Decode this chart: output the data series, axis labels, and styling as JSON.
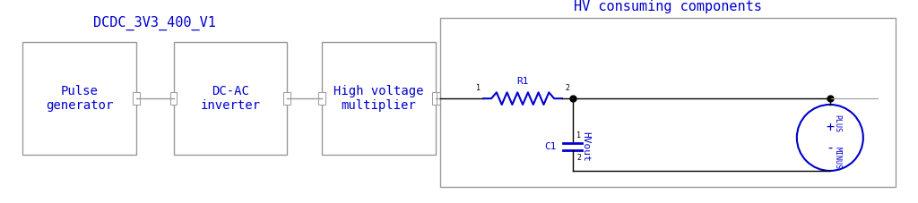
{
  "bg_color": "#ffffff",
  "blue": "#0000cd",
  "gray": "#999999",
  "title1": "DCDC_3V3_400_V1",
  "title2": "HV consuming components",
  "box1_label": "Pulse\ngenerator",
  "box2_label": "DC-AC\ninverter",
  "box3_label": "High voltage\nmultiplier",
  "font_size_title": 11,
  "font_size_box": 10,
  "font_size_small": 7,
  "font_size_label": 8
}
